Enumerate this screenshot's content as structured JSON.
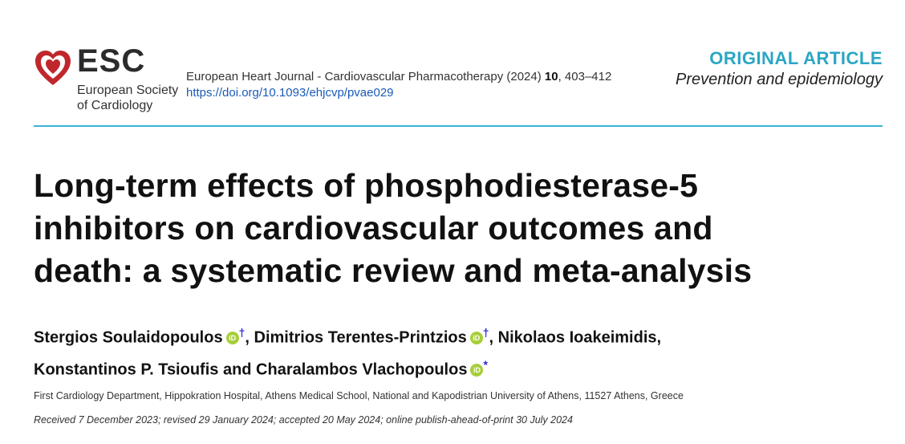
{
  "logo": {
    "abbr": "ESC",
    "name_line1": "European Society",
    "name_line2": "of Cardiology"
  },
  "journal": {
    "citation_prefix": "European Heart Journal - Cardiovascular Pharmacotherapy (2024)",
    "volume": "10",
    "pages": ", 403–412",
    "doi": "https://doi.org/10.1093/ehjcvp/pvae029"
  },
  "article_type": {
    "kind": "ORIGINAL ARTICLE",
    "section": "Prevention and epidemiology"
  },
  "title": {
    "line1": "Long-term effects of phosphodiesterase-5",
    "line2": "inhibitors on cardiovascular outcomes and",
    "line3": "death: a systematic review and meta-analysis"
  },
  "authors": {
    "a1": "Stergios Soulaidopoulos",
    "a1_mark": "†",
    "sep1": ", ",
    "a2": "Dimitrios Terentes-Printzios",
    "a2_mark": "†",
    "sep2": ", ",
    "a3": "Nikolaos Ioakeimidis,",
    "a4": "Konstantinos P. Tsioufis and Charalambos Vlachopoulos",
    "a4_mark": "*",
    "orcid_label": "iD"
  },
  "affiliation": "First Cardiology Department, Hippokration Hospital, Athens Medical School, National and Kapodistrian University of Athens, 11527 Athens, Greece",
  "received": "Received 7 December 2023; revised 29 January 2024; accepted 20 May 2024;  online publish-ahead-of-print 30 July 2024",
  "colors": {
    "accent": "#2aa6c4",
    "rule": "#39b4d0",
    "logo_red": "#c0272d",
    "orcid": "#a6ce39",
    "link": "#1a5bb8"
  }
}
